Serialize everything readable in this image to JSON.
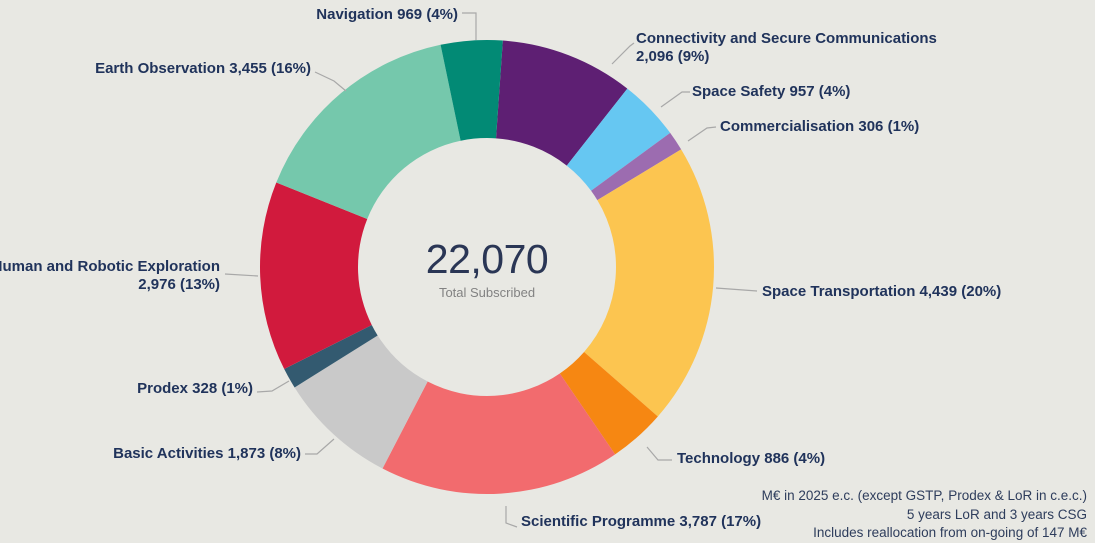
{
  "colors": {
    "background": "#E8E8E3",
    "label_text": "#20335B",
    "center_value_text": "#2A3655",
    "center_caption_text": "#828282",
    "footnote_text": "#2E3D5C",
    "leader_line": "#A8A8A8"
  },
  "center": {
    "value": "22,070",
    "caption": "Total Subscribed"
  },
  "footnotes": [
    "M€ in 2025 e.c. (except GSTP, Prodex & LoR in c.e.c.)",
    "5 years LoR and 3 years CSG",
    "Includes reallocation from on-going of 147 M€"
  ],
  "chart_data": {
    "type": "pie",
    "subtype": "donut",
    "title": "",
    "center_value": 22070,
    "center_value_display": "22,070",
    "center_caption": "Total Subscribed",
    "start_angle_deg": 4,
    "direction": "clockwise",
    "labels_position": "outside-with-leader-lines",
    "legend": "none",
    "slices": [
      {
        "name": "Connectivity and Secure Communications",
        "value": 2096,
        "percent": 9,
        "color": "#5E1F73",
        "label_lines": [
          "Connectivity and Secure Communications",
          "2,096 (9%)"
        ]
      },
      {
        "name": "Space Safety",
        "value": 957,
        "percent": 4,
        "color": "#66C7F2",
        "label_lines": [
          "Space Safety 957 (4%)"
        ]
      },
      {
        "name": "Commercialisation",
        "value": 306,
        "percent": 1,
        "color": "#9C6CB0",
        "label_lines": [
          "Commercialisation 306 (1%)"
        ]
      },
      {
        "name": "Space Transportation",
        "value": 4439,
        "percent": 20,
        "color": "#FCC550",
        "label_lines": [
          "Space Transportation 4,439 (20%)"
        ]
      },
      {
        "name": "Technology",
        "value": 886,
        "percent": 4,
        "color": "#F68712",
        "label_lines": [
          "Technology 886 (4%)"
        ]
      },
      {
        "name": "Scientific Programme",
        "value": 3787,
        "percent": 17,
        "color": "#F26B6E",
        "label_lines": [
          "Scientific Programme 3,787 (17%)"
        ]
      },
      {
        "name": "Basic Activities",
        "value": 1873,
        "percent": 8,
        "color": "#C9C9C9",
        "label_lines": [
          "Basic Activities 1,873 (8%)"
        ]
      },
      {
        "name": "Prodex",
        "value": 328,
        "percent": 1,
        "color": "#335A70",
        "label_lines": [
          "Prodex 328 (1%)"
        ]
      },
      {
        "name": "Human and Robotic Exploration",
        "value": 2976,
        "percent": 13,
        "color": "#D11A3D",
        "label_lines": [
          "Human and Robotic Exploration",
          "2,976 (13%)"
        ]
      },
      {
        "name": "Earth Observation",
        "value": 3455,
        "percent": 16,
        "color": "#75C8AC",
        "label_lines": [
          "Earth Observation 3,455 (16%)"
        ]
      },
      {
        "name": "Navigation",
        "value": 969,
        "percent": 4,
        "color": "#028A75",
        "label_lines": [
          "Navigation 969 (4%)"
        ]
      }
    ]
  }
}
